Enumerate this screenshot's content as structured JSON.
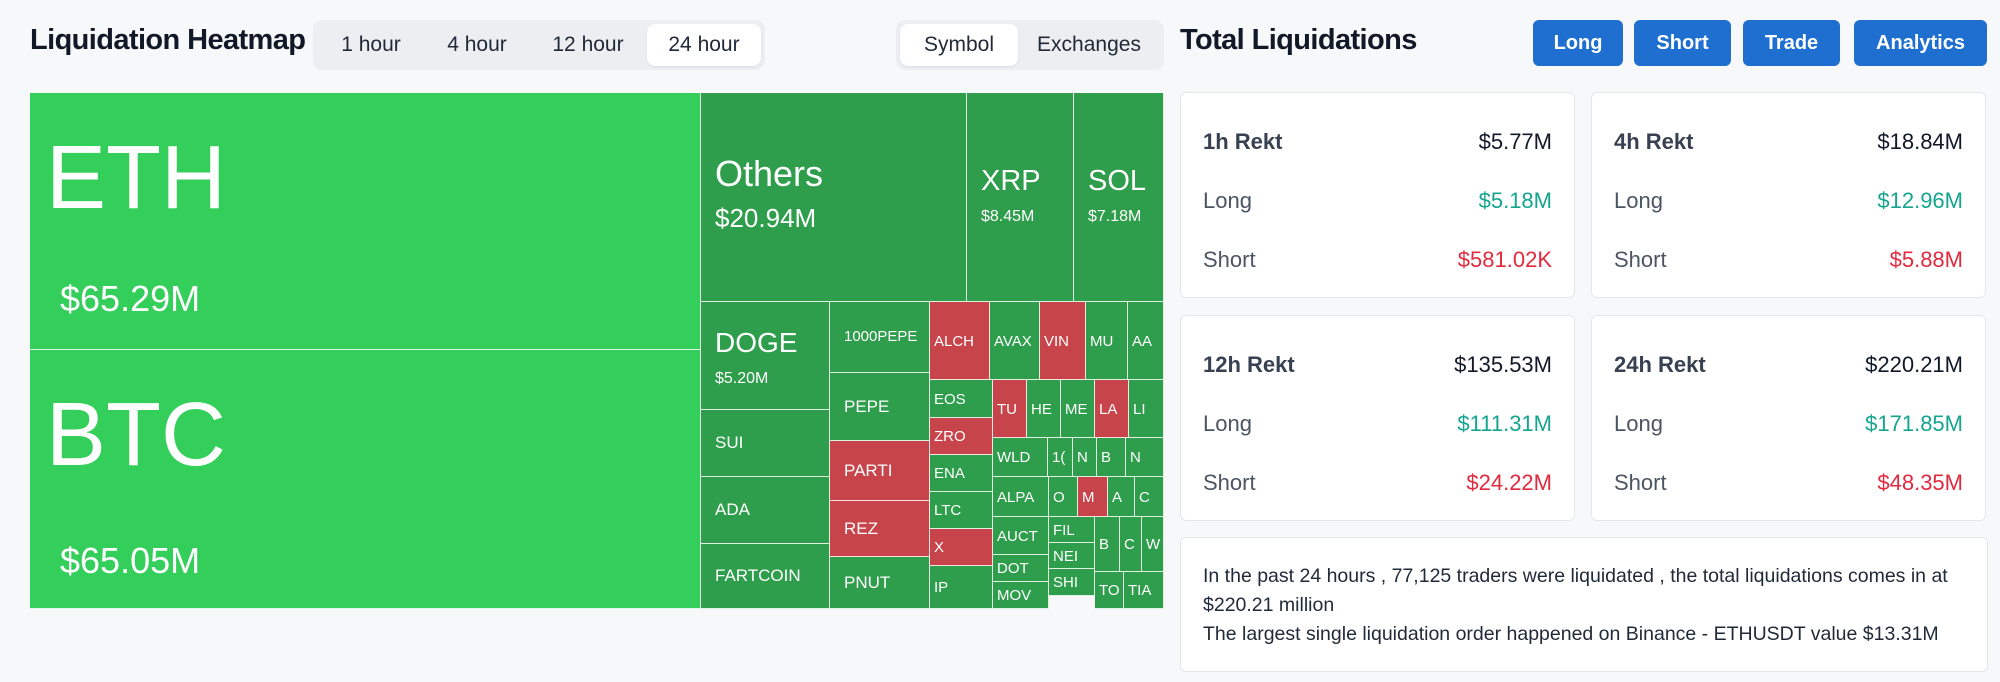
{
  "heatmap": {
    "title": "Liquidation Heatmap",
    "timeframes": [
      "1 hour",
      "4 hour",
      "12 hour",
      "24 hour"
    ],
    "active_timeframe": "24 hour",
    "views": [
      "Symbol",
      "Exchanges"
    ],
    "active_view": "Symbol",
    "tiles": [
      {
        "symbol": "ETH",
        "value": "$65.29M",
        "status": "long"
      },
      {
        "symbol": "BTC",
        "value": "$65.05M",
        "status": "long"
      },
      {
        "symbol": "Others",
        "value": "$20.94M",
        "status": "long"
      },
      {
        "symbol": "XRP",
        "value": "$8.45M",
        "status": "long"
      },
      {
        "symbol": "SOL",
        "value": "$7.18M",
        "status": "long"
      },
      {
        "symbol": "DOGE",
        "value": "$5.20M",
        "status": "long"
      },
      {
        "symbol": "SUI",
        "status": "long"
      },
      {
        "symbol": "ADA",
        "status": "long"
      },
      {
        "symbol": "FARTCOIN",
        "status": "long"
      },
      {
        "symbol": "1000PEPE",
        "status": "long"
      },
      {
        "symbol": "PEPE",
        "status": "long"
      },
      {
        "symbol": "PARTI",
        "status": "short"
      },
      {
        "symbol": "REZ",
        "status": "short"
      },
      {
        "symbol": "PNUT",
        "status": "long"
      },
      {
        "symbol": "ALCH",
        "status": "short"
      },
      {
        "symbol": "AVAX",
        "status": "long"
      },
      {
        "symbol": "VIN",
        "status": "short"
      },
      {
        "symbol": "MU",
        "status": "long"
      },
      {
        "symbol": "AA",
        "status": "long"
      },
      {
        "symbol": "EOS",
        "status": "long"
      },
      {
        "symbol": "ZRO",
        "status": "short"
      },
      {
        "symbol": "ENA",
        "status": "long"
      },
      {
        "symbol": "LTC",
        "status": "long"
      },
      {
        "symbol": "X",
        "status": "short"
      },
      {
        "symbol": "IP",
        "status": "long"
      },
      {
        "symbol": "TU",
        "status": "short"
      },
      {
        "symbol": "HE",
        "status": "long"
      },
      {
        "symbol": "ME",
        "status": "long"
      },
      {
        "symbol": "LA",
        "status": "short"
      },
      {
        "symbol": "LI",
        "status": "long"
      },
      {
        "symbol": "WLD",
        "status": "long"
      },
      {
        "symbol": "1(",
        "status": "long"
      },
      {
        "symbol": "N",
        "status": "long"
      },
      {
        "symbol": "B",
        "status": "long"
      },
      {
        "symbol": "N",
        "status": "long"
      },
      {
        "symbol": "ALPA",
        "status": "long"
      },
      {
        "symbol": "O",
        "status": "long"
      },
      {
        "symbol": "M",
        "status": "short"
      },
      {
        "symbol": "A",
        "status": "long"
      },
      {
        "symbol": "C",
        "status": "long"
      },
      {
        "symbol": "AUCT",
        "status": "long"
      },
      {
        "symbol": "FIL",
        "status": "long"
      },
      {
        "symbol": "NEI",
        "status": "long"
      },
      {
        "symbol": "SHI",
        "status": "long"
      },
      {
        "symbol": "B",
        "status": "long"
      },
      {
        "symbol": "C",
        "status": "long"
      },
      {
        "symbol": "W",
        "status": "long"
      },
      {
        "symbol": "TO",
        "status": "long"
      },
      {
        "symbol": "TIA",
        "status": "long"
      },
      {
        "symbol": "DOT",
        "status": "long"
      },
      {
        "symbol": "MOV",
        "status": "long"
      }
    ]
  },
  "totals": {
    "title": "Total Liquidations",
    "buttons": [
      "Long",
      "Short",
      "Trade",
      "Analytics"
    ],
    "cards": [
      {
        "label": "1h Rekt",
        "total": "$5.77M",
        "long_label": "Long",
        "long": "$5.18M",
        "short_label": "Short",
        "short": "$581.02K"
      },
      {
        "label": "4h Rekt",
        "total": "$18.84M",
        "long_label": "Long",
        "long": "$12.96M",
        "short_label": "Short",
        "short": "$5.88M"
      },
      {
        "label": "12h Rekt",
        "total": "$135.53M",
        "long_label": "Long",
        "long": "$111.31M",
        "short_label": "Short",
        "short": "$24.22M"
      },
      {
        "label": "24h Rekt",
        "total": "$220.21M",
        "long_label": "Long",
        "long": "$171.85M",
        "short_label": "Short",
        "short": "$48.35M"
      }
    ],
    "summary_line1": "In the past 24 hours , 77,125 traders were liquidated , the total liquidations comes in at $220.21 million",
    "summary_line2": "The largest single liquidation order happened on Binance - ETHUSDT value $13.31M"
  },
  "colors": {
    "long_big": "#34ce5a",
    "long": "#2f9e4c",
    "short": "#c6444a",
    "accent": "#1e6fd0"
  }
}
